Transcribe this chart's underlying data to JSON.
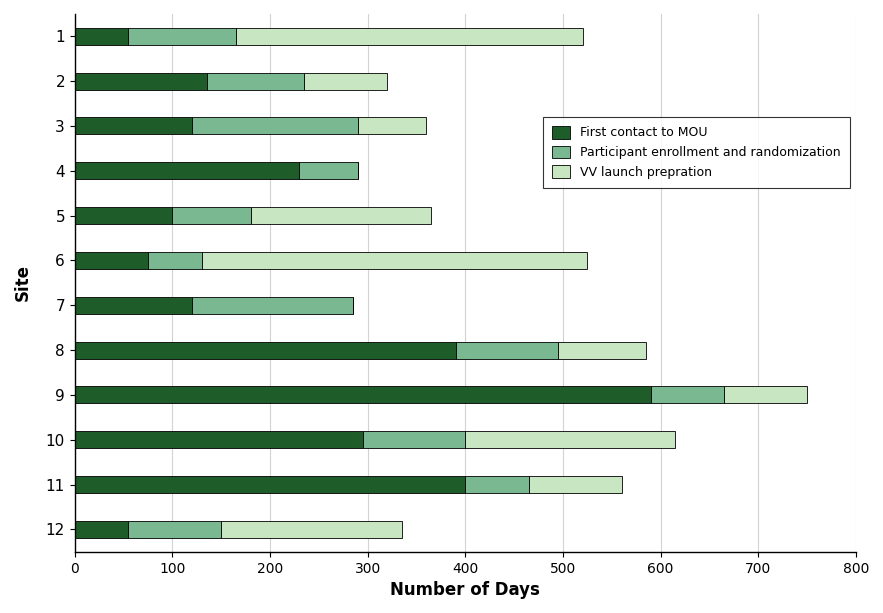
{
  "sites": [
    "1",
    "2",
    "3",
    "4",
    "5",
    "6",
    "7",
    "8",
    "9",
    "10",
    "11",
    "12"
  ],
  "segment1": [
    55,
    135,
    120,
    230,
    100,
    75,
    120,
    390,
    590,
    295,
    400,
    55
  ],
  "segment2": [
    110,
    100,
    170,
    60,
    80,
    55,
    165,
    105,
    75,
    105,
    65,
    95
  ],
  "segment3": [
    355,
    85,
    70,
    0,
    185,
    395,
    0,
    90,
    85,
    215,
    95,
    185
  ],
  "color1": "#1e5c2a",
  "color2": "#7ab892",
  "color3": "#c8e6c2",
  "legend_labels": [
    "First contact to MOU",
    "Participant enrollment and randomization",
    "VV launch prepration"
  ],
  "xlabel": "Number of Days",
  "ylabel": "Site",
  "xlim": [
    0,
    800
  ],
  "xticks": [
    0,
    100,
    200,
    300,
    400,
    500,
    600,
    700,
    800
  ],
  "bar_height": 0.38,
  "figsize": [
    8.83,
    6.13
  ],
  "dpi": 100
}
